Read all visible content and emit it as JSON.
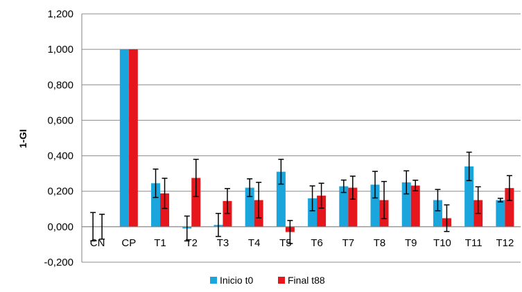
{
  "chart_data": {
    "type": "bar",
    "ylabel": "1-GI",
    "ylim": [
      -0.2,
      1.2
    ],
    "yticks": [
      "1,200",
      "1,000",
      "0,800",
      "0,600",
      "0,400",
      "0,200",
      "0,000",
      "-0,200"
    ],
    "ytick_values": [
      1.2,
      1.0,
      0.8,
      0.6,
      0.4,
      0.2,
      0.0,
      -0.2
    ],
    "grid": "horizontal",
    "legend_position": "bottom",
    "categories": [
      "CN",
      "CP",
      "T1",
      "T2",
      "T3",
      "T4",
      "T5",
      "T6",
      "T7",
      "T8",
      "T9",
      "T10",
      "T11",
      "T12"
    ],
    "series": [
      {
        "name": "Inicio t0",
        "color": "#1aa6dc",
        "values": [
          0.0,
          1.0,
          0.245,
          -0.01,
          0.01,
          0.22,
          0.31,
          0.16,
          0.228,
          0.237,
          0.25,
          0.15,
          0.34,
          0.15
        ],
        "errors": [
          0.08,
          0.0,
          0.08,
          0.07,
          0.065,
          0.05,
          0.07,
          0.07,
          0.035,
          0.075,
          0.065,
          0.06,
          0.08,
          0.01
        ]
      },
      {
        "name": "Final t88",
        "color": "#e5161c",
        "values": [
          0.0,
          1.0,
          0.188,
          0.275,
          0.145,
          0.15,
          -0.03,
          0.175,
          0.22,
          0.15,
          0.232,
          0.048,
          0.15,
          0.218
        ],
        "errors": [
          0.07,
          0.0,
          0.085,
          0.105,
          0.07,
          0.1,
          0.065,
          0.07,
          0.065,
          0.105,
          0.03,
          0.075,
          0.075,
          0.07
        ]
      }
    ]
  }
}
